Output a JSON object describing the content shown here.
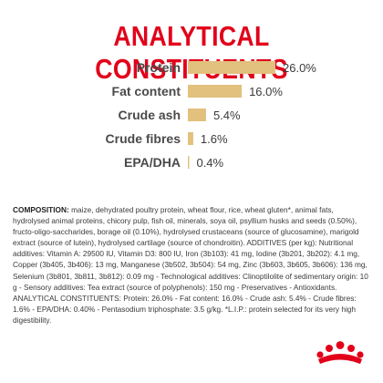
{
  "title": "ANALYTICAL CONSTITUENTS",
  "colors": {
    "brand_red": "#e2001a",
    "bar_gold": "#e2c07e",
    "label_dark": "#4a4a4a"
  },
  "chart_data": {
    "type": "bar",
    "orientation": "horizontal",
    "title": "ANALYTICAL CONSTITUENTS",
    "categories": [
      "Protein",
      "Fat content",
      "Crude ash",
      "Crude fibres",
      "EPA/DHA"
    ],
    "values": [
      26.0,
      16.0,
      5.4,
      1.6,
      0.4
    ],
    "value_labels": [
      "26.0%",
      "16.0%",
      "5.4%",
      "1.6%",
      "0.4%"
    ],
    "unit": "%",
    "xlim": [
      0,
      26
    ],
    "grid": false,
    "legend": "none"
  },
  "composition": {
    "label": "COMPOSITION:",
    "text": " maize, dehydrated poultry protein, wheat flour, rice, wheat gluten*, animal fats, hydrolysed animal proteins, chicory pulp, fish oil, minerals, soya oil, psyllium husks and seeds (0.50%), fructo-oligo-saccharides, borage oil (0.10%), hydrolysed crustaceans (source of glucosamine), marigold extract (source of lutein), hydrolysed cartilage (source of chondroitin). ADDITIVES (per kg): Nutritional additives: Vitamin A: 29500 IU, Vitamin D3: 800 IU, Iron (3b103): 41 mg, Iodine (3b201, 3b202): 4.1 mg, Copper (3b405, 3b406): 13 mg, Manganese (3b502, 3b504): 54 mg, Zinc (3b603, 3b605, 3b606): 136 mg, Selenium (3b801, 3b811, 3b812): 0.09 mg - Technological additives: Clinoptilolite of sedimentary origin: 10 g - Sensory additives: Tea extract (source of polyphenols): 150 mg - Preservatives - Antioxidants. ANALYTICAL CONSTITUENTS: Protein: 26.0% - Fat content: 16.0% - Crude ash: 5.4% - Crude fibres: 1.6% - EPA/DHA: 0.40% - Pentasodium triphosphate: 3.5 g/kg. *L.I.P.: protein selected for its very high digestibility."
  },
  "logo": {
    "icon": "crown-icon"
  }
}
